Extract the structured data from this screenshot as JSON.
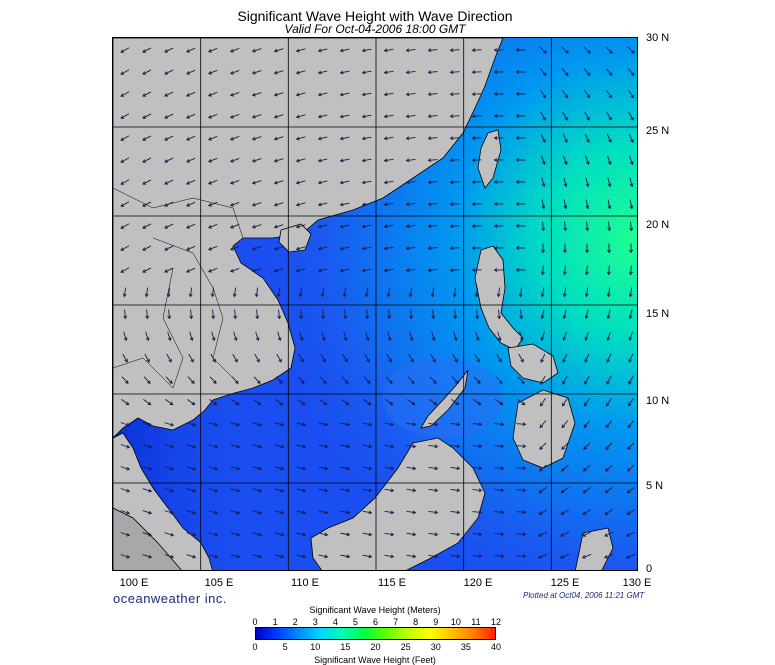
{
  "header": {
    "title": "Significant Wave Height with Wave Direction",
    "subtitle": "Valid For Oct-04-2006 18:00 GMT"
  },
  "map": {
    "lon_labels": [
      "100 E",
      "105 E",
      "110 E",
      "115 E",
      "120 E",
      "125 E",
      "130 E"
    ],
    "lat_labels": [
      "30 N",
      "25 N",
      "20 N",
      "15 N",
      "10 N",
      "5 N",
      "0"
    ],
    "lon_range": [
      100,
      130
    ],
    "lat_range": [
      0,
      30
    ],
    "land_color": "#c0c0c0",
    "sea_low_color": "#1040f0",
    "sea_high_color": "#00ff80",
    "arrow_color": "#1a1a4a",
    "grid": true
  },
  "footer": {
    "brand": "oceanweather inc.",
    "plotted": "Plotted at Oct04, 2006 11:21 GMT"
  },
  "colorbar": {
    "title_meters": "Significant Wave Height (Meters)",
    "title_feet": "Significant Wave Height (Feet)",
    "meters_ticks": [
      "0",
      "1",
      "2",
      "3",
      "4",
      "5",
      "6",
      "7",
      "8",
      "9",
      "10",
      "11",
      "12"
    ],
    "feet_ticks": [
      "0",
      "5",
      "10",
      "15",
      "20",
      "25",
      "30",
      "35",
      "40"
    ],
    "colors": [
      "#0000c8",
      "#0040ff",
      "#0090ff",
      "#00d8ff",
      "#00ffb0",
      "#00ff40",
      "#60ff00",
      "#c0ff00",
      "#ffff00",
      "#ffc000",
      "#ff8000",
      "#ff2000"
    ]
  }
}
